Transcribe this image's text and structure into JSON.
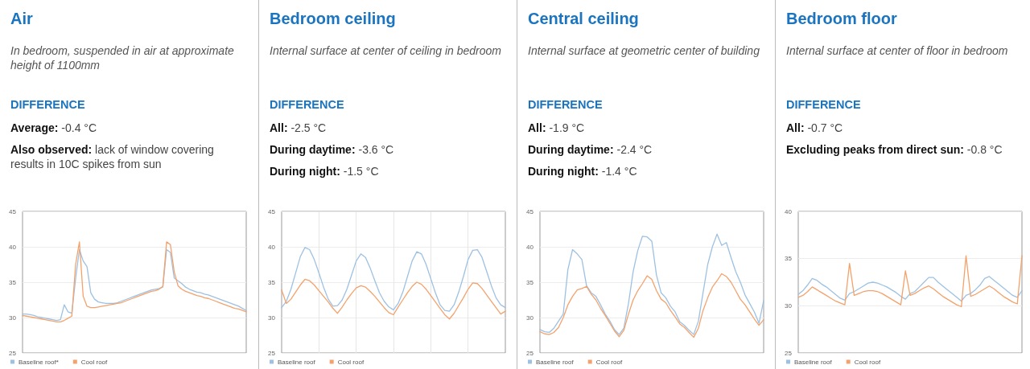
{
  "chart_data": [
    {
      "type": "line",
      "title": "Air",
      "subtitle": "In bedroom, suspended in air at approximate height of 1100mm",
      "annotations": [
        "DIFFERENCE",
        "Average: -0.4 °C",
        "Also observed: lack of window covering results in 10C spikes from sun"
      ],
      "categories": [
        null,
        null,
        null,
        null,
        null,
        null,
        null,
        null,
        null,
        null,
        null,
        null,
        null,
        null,
        null,
        null,
        null,
        null,
        null,
        null,
        null,
        null,
        null,
        null,
        null,
        null,
        null,
        null,
        null,
        null,
        null,
        null,
        null,
        null,
        null,
        null,
        null,
        null,
        null,
        null,
        null,
        null,
        null,
        null,
        null,
        null,
        null,
        null,
        null,
        null,
        null,
        null,
        null,
        null,
        null,
        null,
        null,
        null,
        null,
        null
      ],
      "series": [
        {
          "name": "Baseline roof*",
          "color": "#9dc1e3",
          "values": [
            30.5,
            30.5,
            30.4,
            30.3,
            30.1,
            30.0,
            29.9,
            29.8,
            29.7,
            29.6,
            29.7,
            31.8,
            30.8,
            30.6,
            35.5,
            39.6,
            38,
            37.2,
            33.5,
            32.6,
            32.2,
            32.1,
            32.0,
            32.0,
            32.0,
            32.1,
            32.3,
            32.5,
            32.7,
            32.9,
            33.1,
            33.3,
            33.5,
            33.7,
            33.9,
            34.0,
            34.1,
            34.3,
            39.6,
            39.2,
            35.6,
            35.2,
            34.8,
            34.3,
            34.0,
            33.8,
            33.6,
            33.5,
            33.3,
            33.2,
            33.0,
            32.8,
            32.6,
            32.4,
            32.2,
            32.0,
            31.8,
            31.6,
            31.3,
            31.0
          ]
        },
        {
          "name": "Cool roof",
          "color": "#f4a26c",
          "values": [
            30.3,
            30.2,
            30.1,
            30.0,
            29.9,
            29.8,
            29.7,
            29.6,
            29.5,
            29.4,
            29.4,
            29.6,
            29.9,
            30.2,
            37.5,
            40.7,
            33.0,
            31.6,
            31.4,
            31.4,
            31.5,
            31.6,
            31.7,
            31.8,
            31.9,
            32.0,
            32.1,
            32.3,
            32.5,
            32.7,
            32.9,
            33.1,
            33.3,
            33.5,
            33.7,
            33.8,
            34.0,
            34.4,
            40.7,
            40.3,
            36.5,
            34.5,
            34.0,
            33.7,
            33.5,
            33.3,
            33.1,
            33.0,
            32.8,
            32.7,
            32.5,
            32.3,
            32.1,
            31.9,
            31.7,
            31.5,
            31.3,
            31.2,
            31.0,
            30.8
          ]
        }
      ],
      "ylim": [
        25,
        45
      ],
      "yticks": [
        25,
        30,
        35,
        40,
        45
      ],
      "grid": "y",
      "legend": "bottom",
      "marker": "none"
    },
    {
      "type": "line",
      "title": "Bedroom ceiling",
      "subtitle": "Internal surface at center of ceiling in bedroom",
      "annotations": [
        "DIFFERENCE",
        "All: -2.5 °C",
        "During daytime: -3.6 °C",
        "During night: -1.5 °C"
      ],
      "categories": [
        null,
        null,
        null,
        null,
        null,
        null,
        null,
        null,
        null,
        null,
        null,
        null,
        null,
        null,
        null,
        null,
        null,
        null,
        null,
        null,
        null,
        null,
        null,
        null,
        null,
        null,
        null,
        null,
        null,
        null,
        null,
        null,
        null,
        null,
        null,
        null,
        null,
        null,
        null,
        null,
        null,
        null,
        null,
        null,
        null,
        null,
        null,
        null,
        null
      ],
      "series": [
        {
          "name": "Baseline roof",
          "color": "#9dc1e3",
          "values": [
            31.4,
            32.3,
            34,
            36.3,
            38.6,
            39.9,
            39.6,
            38.2,
            36.3,
            34.3,
            32.6,
            31.6,
            31.7,
            32.5,
            34,
            36,
            38,
            39,
            38.5,
            37,
            35.2,
            33.5,
            32.3,
            31.5,
            31.1,
            32,
            33.6,
            35.8,
            38,
            39.3,
            39,
            37.5,
            35.5,
            33.5,
            31.8,
            31,
            30.9,
            31.8,
            33.6,
            35.8,
            38.2,
            39.5,
            39.6,
            38.5,
            36.5,
            34.5,
            32.8,
            31.8,
            31.4
          ]
        },
        {
          "name": "Cool roof",
          "color": "#f4a26c",
          "values": [
            33.9,
            32,
            32.6,
            33.6,
            34.6,
            35.4,
            35.2,
            34.6,
            33.8,
            33,
            32.2,
            31.3,
            30.6,
            31.5,
            32.5,
            33.4,
            34.2,
            34.5,
            34.3,
            33.7,
            33,
            32.2,
            31.4,
            30.7,
            30.4,
            31.5,
            32.5,
            33.5,
            34.4,
            35,
            34.7,
            34,
            33.1,
            32.2,
            31.3,
            30.4,
            29.8,
            30.6,
            31.7,
            32.8,
            34,
            34.9,
            34.8,
            34.1,
            33.2,
            32.3,
            31.4,
            30.5,
            30.9
          ]
        }
      ],
      "ylim": [
        25,
        45
      ],
      "yticks": [
        25,
        30,
        35,
        40,
        45
      ],
      "grid": true,
      "legend": "bottom",
      "marker": "none"
    },
    {
      "type": "line",
      "title": "Central ceiling",
      "subtitle": "Internal surface at geometric center of building",
      "annotations": [
        "DIFFERENCE",
        "All: -1.9 °C",
        "During daytime: -2.4 °C",
        "During night: -1.4 °C"
      ],
      "categories": [
        null,
        null,
        null,
        null,
        null,
        null,
        null,
        null,
        null,
        null,
        null,
        null,
        null,
        null,
        null,
        null,
        null,
        null,
        null,
        null,
        null,
        null,
        null,
        null,
        null,
        null,
        null,
        null,
        null,
        null,
        null,
        null,
        null,
        null,
        null,
        null,
        null,
        null,
        null,
        null,
        null,
        null,
        null,
        null,
        null,
        null,
        null,
        null,
        null
      ],
      "series": [
        {
          "name": "Baseline roof",
          "color": "#9dc1e3",
          "values": [
            28.3,
            28,
            27.9,
            28.5,
            29.5,
            30.5,
            36.8,
            39.6,
            39,
            38.2,
            34.5,
            33.5,
            33.0,
            31.8,
            30.5,
            29.5,
            28.3,
            27.6,
            28.5,
            32,
            36.5,
            39.5,
            41.5,
            41.4,
            40.8,
            36,
            33.5,
            32.8,
            31.6,
            30.8,
            29.4,
            28.9,
            28.2,
            27.6,
            29.5,
            33.5,
            37.5,
            40,
            41.8,
            40.2,
            40.6,
            38.5,
            36.5,
            35,
            33.2,
            32,
            30.8,
            29.2,
            32.4
          ]
        },
        {
          "name": "Cool roof",
          "color": "#f4a26c",
          "values": [
            28,
            27.7,
            27.6,
            27.9,
            28.6,
            30,
            31.8,
            33,
            33.9,
            34.1,
            34.4,
            33.3,
            32.5,
            31.3,
            30.3,
            29.2,
            28.1,
            27.3,
            28.2,
            30.5,
            32.5,
            33.8,
            34.8,
            35.9,
            35.4,
            33.8,
            32.6,
            32.1,
            31,
            30.1,
            29.1,
            28.6,
            27.9,
            27.2,
            28.5,
            31,
            32.8,
            34.3,
            35.2,
            36.2,
            35.8,
            35,
            33.8,
            32.6,
            31.8,
            30.8,
            29.8,
            28.9,
            29.7
          ]
        }
      ],
      "ylim": [
        25,
        45
      ],
      "yticks": [
        25,
        30,
        35,
        40,
        45
      ],
      "grid": "y",
      "legend": "bottom",
      "marker": "none"
    },
    {
      "type": "line",
      "title": "Bedroom floor",
      "subtitle": "Internal surface at center of floor in bedroom",
      "annotations": [
        "DIFFERENCE",
        "All: -0.7 °C",
        "Excluding peaks from direct sun: -0.8 °C"
      ],
      "categories": [
        null,
        null,
        null,
        null,
        null,
        null,
        null,
        null,
        null,
        null,
        null,
        null,
        null,
        null,
        null,
        null,
        null,
        null,
        null,
        null,
        null,
        null,
        null,
        null,
        null,
        null,
        null,
        null,
        null,
        null,
        null,
        null,
        null,
        null,
        null,
        null,
        null,
        null,
        null,
        null,
        null,
        null,
        null,
        null,
        null,
        null,
        null,
        null,
        null
      ],
      "series": [
        {
          "name": "Baseline roof",
          "color": "#9dc1e3",
          "values": [
            31.2,
            31.6,
            32.2,
            32.9,
            32.7,
            32.3,
            32.0,
            31.6,
            31.2,
            30.8,
            30.6,
            31.3,
            31.5,
            31.8,
            32.1,
            32.4,
            32.5,
            32.4,
            32.2,
            32.0,
            31.7,
            31.4,
            31.0,
            30.7,
            31.3,
            31.5,
            32.0,
            32.5,
            33.0,
            33.0,
            32.5,
            32.1,
            31.7,
            31.3,
            30.9,
            30.5,
            31.1,
            31.3,
            31.7,
            32.2,
            32.9,
            33.1,
            32.7,
            32.3,
            31.9,
            31.5,
            31.1,
            30.9,
            31.6
          ]
        },
        {
          "name": "Cool roof",
          "color": "#f4a26c",
          "values": [
            30.9,
            31.1,
            31.5,
            32.0,
            31.7,
            31.4,
            31.1,
            30.8,
            30.5,
            30.3,
            30.1,
            34.5,
            31.1,
            31.3,
            31.5,
            31.6,
            31.6,
            31.5,
            31.3,
            31.0,
            30.7,
            30.4,
            30.1,
            33.7,
            31.1,
            31.3,
            31.6,
            31.9,
            32.1,
            31.8,
            31.4,
            31.0,
            30.7,
            30.4,
            30.1,
            29.9,
            35.3,
            31.0,
            31.2,
            31.5,
            31.8,
            32.1,
            31.8,
            31.4,
            31.0,
            30.7,
            30.4,
            30.2,
            35.3
          ]
        }
      ],
      "ylim": [
        25,
        40
      ],
      "yticks": [
        25,
        30,
        35,
        40
      ],
      "grid": "y",
      "legend": "bottom",
      "marker": "none"
    }
  ]
}
